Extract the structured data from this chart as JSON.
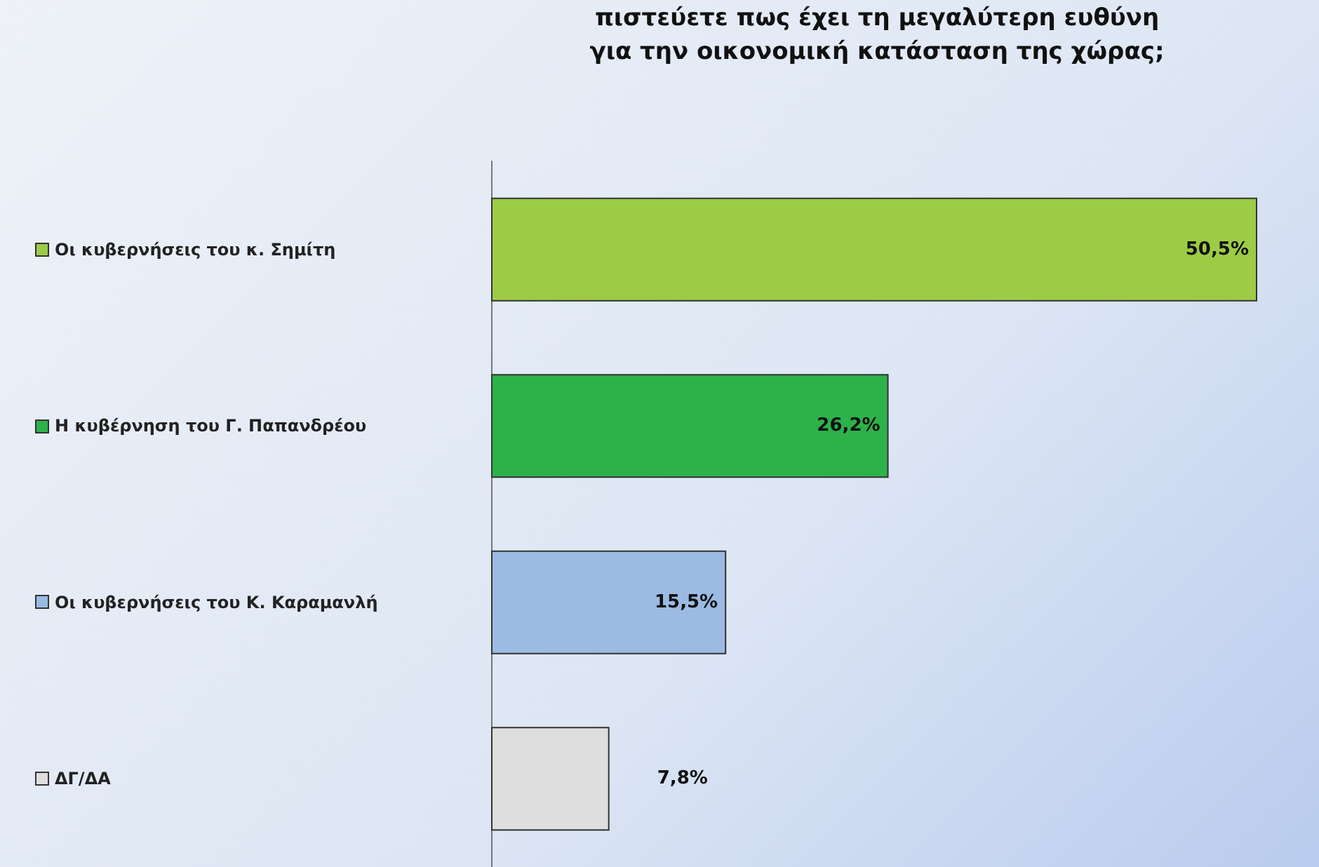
{
  "chart_data": {
    "type": "bar",
    "orientation": "horizontal",
    "title": "πιστεύετε πως έχει τη μεγαλύτερη ευθύνη\nγια την οικονομική κατάσταση της χώρας;",
    "categories": [
      "Οι κυβερνήσεις του κ. Σημίτη",
      "Η κυβέρνηση του Γ. Παπανδρέου",
      "Οι κυβερνήσεις του Κ. Καραμανλή",
      "ΔΓ/ΔΑ"
    ],
    "values": [
      50.5,
      26.2,
      15.5,
      7.8
    ],
    "colors": [
      "#9ccc46",
      "#2db24a",
      "#9bbbe3",
      "#dedede"
    ],
    "value_labels": [
      "50,5%",
      "26,2%",
      "15,5%",
      "7,8%"
    ],
    "grid": false
  }
}
